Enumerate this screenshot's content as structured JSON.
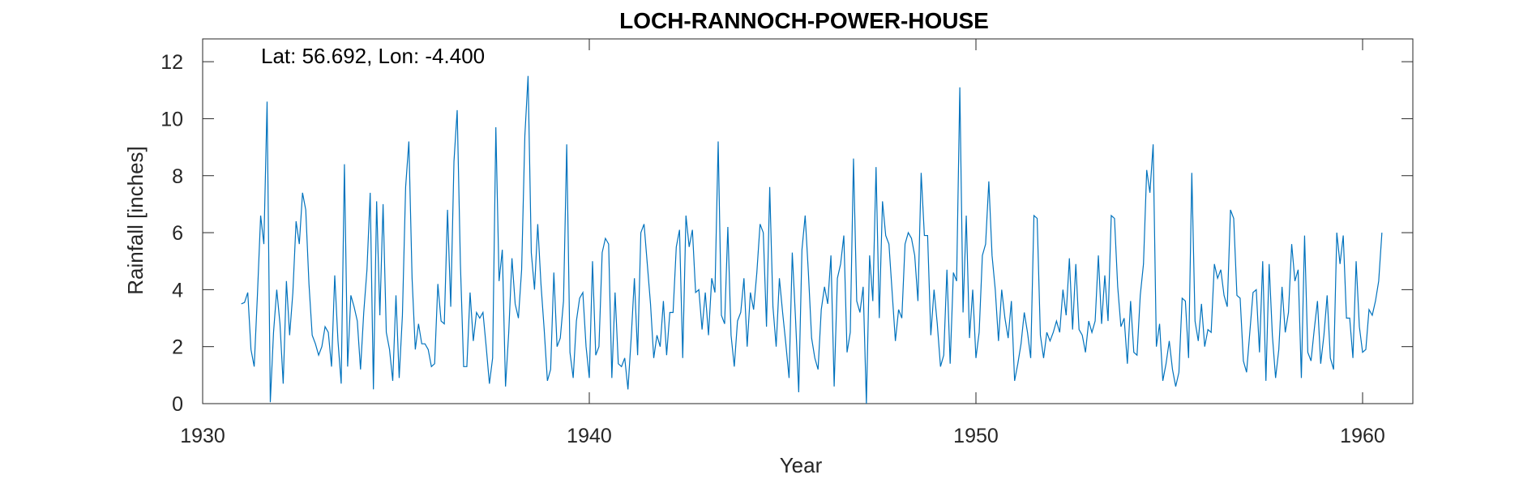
{
  "chart_data": {
    "type": "line",
    "title": "LOCH-RANNOCH-POWER-HOUSE",
    "xlabel": "Year",
    "ylabel": "Rainfall [inches]",
    "annotation": "Lat: 56.692, Lon: -4.400",
    "xlim": [
      1930,
      1961.3
    ],
    "ylim": [
      0,
      12.8
    ],
    "xticks": [
      1930,
      1940,
      1950,
      1960
    ],
    "yticks": [
      0,
      2,
      4,
      6,
      8,
      10,
      12
    ],
    "grid": false,
    "line_color": "#0072BD",
    "series": [
      {
        "start_year": 1931.0,
        "step_months": 1,
        "values": [
          3.5,
          3.55,
          3.9,
          1.9,
          1.3,
          3.8,
          6.6,
          5.6,
          10.6,
          0.05,
          2.5,
          4.0,
          2.8,
          0.7,
          4.3,
          2.4,
          3.9,
          6.4,
          5.6,
          7.4,
          6.8,
          4.2,
          2.4,
          2.1,
          1.7,
          2.0,
          2.7,
          2.5,
          1.3,
          4.5,
          2.2,
          0.7,
          8.4,
          1.3,
          3.8,
          3.4,
          2.9,
          1.2,
          3.2,
          4.7,
          7.4,
          0.5,
          7.1,
          3.1,
          7.0,
          2.5,
          1.9,
          0.8,
          3.8,
          0.9,
          3.1,
          7.6,
          9.2,
          4.4,
          1.9,
          2.8,
          2.1,
          2.1,
          1.9,
          1.3,
          1.4,
          4.2,
          2.9,
          2.8,
          6.8,
          3.4,
          8.5,
          10.3,
          4.9,
          1.3,
          1.3,
          3.9,
          2.2,
          3.2,
          3.0,
          3.2,
          2.0,
          0.7,
          1.6,
          9.7,
          4.3,
          5.4,
          0.6,
          2.5,
          5.1,
          3.5,
          3.0,
          4.7,
          9.4,
          11.5,
          5.3,
          4.0,
          6.3,
          4.2,
          2.6,
          0.8,
          1.2,
          4.6,
          2.0,
          2.3,
          3.6,
          9.1,
          1.8,
          0.9,
          2.9,
          3.7,
          3.9,
          2.0,
          0.9,
          5.0,
          1.7,
          2.0,
          5.3,
          5.8,
          5.6,
          0.9,
          3.9,
          1.4,
          1.3,
          1.6,
          0.5,
          2.3,
          4.4,
          1.7,
          6.0,
          6.3,
          4.9,
          3.5,
          1.6,
          2.4,
          2.0,
          3.6,
          1.7,
          3.2,
          3.2,
          5.5,
          6.1,
          1.6,
          6.6,
          5.5,
          6.1,
          3.9,
          4.0,
          2.6,
          3.9,
          2.4,
          4.4,
          3.9,
          9.2,
          3.1,
          2.8,
          6.2,
          2.4,
          1.3,
          2.9,
          3.2,
          4.4,
          2.0,
          3.9,
          3.3,
          4.6,
          6.3,
          6.0,
          2.7,
          7.6,
          3.4,
          2.0,
          4.4,
          3.2,
          2.1,
          0.9,
          5.3,
          3.0,
          0.4,
          5.4,
          6.6,
          4.6,
          2.3,
          1.6,
          1.2,
          3.3,
          4.1,
          3.5,
          5.2,
          0.6,
          4.4,
          4.9,
          5.9,
          1.8,
          2.5,
          8.6,
          3.6,
          3.2,
          4.1,
          0.0,
          5.2,
          3.6,
          8.3,
          3.0,
          7.1,
          5.9,
          5.6,
          3.9,
          2.2,
          3.3,
          3.0,
          5.6,
          6.0,
          5.8,
          5.2,
          3.6,
          8.1,
          5.9,
          5.9,
          2.4,
          4.0,
          2.8,
          1.3,
          1.7,
          4.7,
          1.4,
          4.6,
          4.3,
          11.1,
          3.2,
          6.6,
          2.3,
          4.0,
          1.6,
          2.5,
          5.2,
          5.6,
          7.8,
          5.2,
          4.0,
          2.2,
          4.0,
          3.0,
          2.3,
          3.6,
          0.8,
          1.4,
          2.1,
          3.2,
          2.5,
          1.6,
          6.6,
          6.5,
          2.4,
          1.6,
          2.5,
          2.2,
          2.5,
          2.9,
          2.5,
          4.0,
          3.1,
          5.1,
          2.6,
          4.9,
          2.6,
          2.4,
          1.8,
          2.9,
          2.5,
          2.9,
          5.2,
          2.8,
          4.5,
          2.9,
          6.6,
          6.5,
          4.1,
          2.7,
          3.0,
          1.4,
          3.6,
          1.8,
          1.7,
          3.8,
          4.9,
          8.2,
          7.4,
          9.1,
          2.0,
          2.8,
          0.8,
          1.4,
          2.2,
          1.2,
          0.6,
          1.1,
          3.7,
          3.6,
          1.6,
          8.1,
          2.9,
          2.2,
          3.5,
          2.0,
          2.6,
          2.5,
          4.9,
          4.4,
          4.7,
          3.8,
          3.4,
          6.8,
          6.5,
          3.8,
          3.7,
          1.5,
          1.1,
          2.5,
          3.9,
          4.0,
          1.8,
          5.0,
          0.8,
          4.9,
          2.4,
          0.9,
          1.9,
          4.1,
          2.5,
          3.2,
          5.6,
          4.3,
          4.7,
          0.9,
          5.9,
          1.8,
          1.5,
          2.6,
          3.6,
          1.4,
          2.4,
          3.8,
          1.6,
          1.2,
          6.0,
          4.9,
          5.9,
          3.0,
          3.0,
          1.6,
          5.0,
          2.7,
          1.8,
          1.9,
          3.3,
          3.1,
          3.6,
          4.3,
          6.0
        ]
      }
    ]
  }
}
